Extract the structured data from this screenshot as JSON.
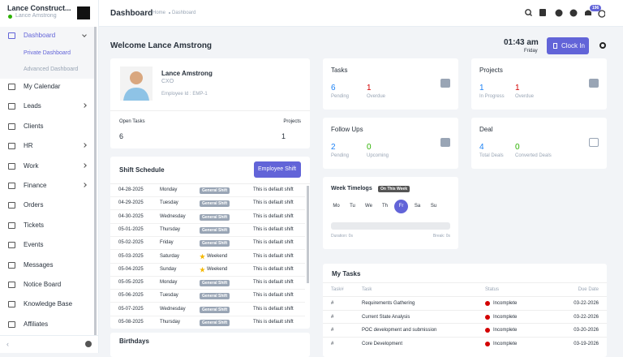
{
  "sidebar": {
    "company": "Lance Construct...",
    "user": "Lance Amstrong",
    "menu": [
      {
        "label": "Dashboard",
        "expandable": true
      },
      {
        "label": "My Calendar",
        "expandable": false
      },
      {
        "label": "Leads",
        "expandable": true
      },
      {
        "label": "Clients",
        "expandable": false
      },
      {
        "label": "HR",
        "expandable": true
      },
      {
        "label": "Work",
        "expandable": true
      },
      {
        "label": "Finance",
        "expandable": true
      },
      {
        "label": "Orders",
        "expandable": false
      },
      {
        "label": "Tickets",
        "expandable": false
      },
      {
        "label": "Events",
        "expandable": false
      },
      {
        "label": "Messages",
        "expandable": false
      },
      {
        "label": "Notice Board",
        "expandable": false
      },
      {
        "label": "Knowledge Base",
        "expandable": false
      },
      {
        "label": "Affiliates",
        "expandable": false
      }
    ],
    "submenu": [
      "Private Dashboard",
      "Advanced Dashboard"
    ]
  },
  "header": {
    "title": "Dashboard",
    "breadcrumb": [
      "Home",
      "Dashboard"
    ],
    "notification_count": 196
  },
  "welcome": "Welcome Lance Amstrong",
  "clock": {
    "time": "01:43 am",
    "day": "Friday",
    "button": "Clock In"
  },
  "profile": {
    "name": "Lance Amstrong",
    "role": "CXO",
    "employee_id": "Employee Id : EMP-1",
    "stats": [
      {
        "label": "Open Tasks",
        "value": 6
      },
      {
        "label": "Projects",
        "value": 1
      }
    ]
  },
  "widgets": [
    {
      "title": "Tasks",
      "stats": [
        {
          "value": 6,
          "label": "Pending",
          "color": "#1d82f5"
        },
        {
          "value": 1,
          "label": "Overdue",
          "color": "#d30000"
        }
      ]
    },
    {
      "title": "Projects",
      "stats": [
        {
          "value": 1,
          "label": "In Progress",
          "color": "#1d82f5"
        },
        {
          "value": 1,
          "label": "Overdue",
          "color": "#d30000"
        }
      ]
    },
    {
      "title": "Follow Ups",
      "stats": [
        {
          "value": 2,
          "label": "Pending",
          "color": "#1d82f5"
        },
        {
          "value": 0,
          "label": "Upcoming",
          "color": "#2cb100"
        }
      ]
    },
    {
      "title": "Deal",
      "stats": [
        {
          "value": 4,
          "label": "Total Deals",
          "color": "#1d82f5"
        },
        {
          "value": 0,
          "label": "Converted Deals",
          "color": "#2cb100"
        }
      ]
    }
  ],
  "timelogs": {
    "title": "Week Timelogs",
    "badge": "On This Week",
    "days": [
      "Mo",
      "Tu",
      "We",
      "Th",
      "Fr",
      "Sa",
      "Su"
    ],
    "active_day": 4,
    "duration": "Duration: 0s",
    "break": "Break: 0s"
  },
  "shift_schedule": {
    "title": "Shift Schedule",
    "button": "Employee Shift",
    "rows": [
      [
        "04-28-2025",
        "Monday",
        "General Shift",
        "This is default shift"
      ],
      [
        "04-29-2025",
        "Tuesday",
        "General Shift",
        "This is default shift"
      ],
      [
        "04-30-2025",
        "Wednesday",
        "General Shift",
        "This is default shift"
      ],
      [
        "05-01-2025",
        "Thursday",
        "General Shift",
        "This is default shift"
      ],
      [
        "05-02-2025",
        "Friday",
        "General Shift",
        "This is default shift"
      ],
      [
        "05-03-2025",
        "Saturday",
        "Weekend",
        "This is default shift"
      ],
      [
        "05-04-2025",
        "Sunday",
        "Weekend",
        "This is default shift"
      ],
      [
        "05-05-2025",
        "Monday",
        "General Shift",
        "This is default shift"
      ],
      [
        "05-06-2025",
        "Tuesday",
        "General Shift",
        "This is default shift"
      ],
      [
        "05-07-2025",
        "Wednesday",
        "General Shift",
        "This is default shift"
      ],
      [
        "05-08-2025",
        "Thursday",
        "General Shift",
        "This is default shift"
      ]
    ]
  },
  "birthdays": {
    "title": "Birthdays"
  },
  "my_tasks": {
    "title": "My Tasks",
    "columns": [
      "Task#",
      "Task",
      "Status",
      "Due Date"
    ],
    "rows": [
      [
        "#",
        "Requirements Gathering",
        "Incomplete",
        "03-22-2026"
      ],
      [
        "#",
        "Current State Analysis",
        "Incomplete",
        "03-22-2026"
      ],
      [
        "#",
        "POC development and submission",
        "Incomplete",
        "03-20-2026"
      ],
      [
        "#",
        "Core Development",
        "Incomplete",
        "03-19-2026"
      ]
    ]
  }
}
